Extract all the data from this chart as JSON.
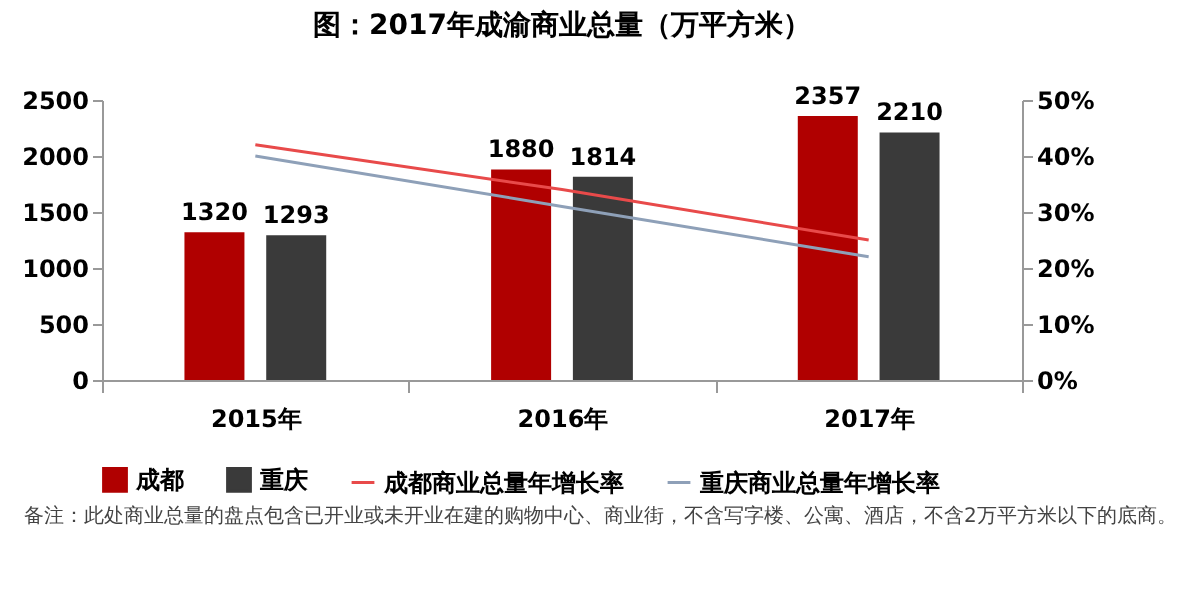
{
  "chart_data": {
    "type": "bar",
    "title": "图：2017年成渝商业总量（万平方米）",
    "categories": [
      "2015年",
      "2016年",
      "2017年"
    ],
    "series": [
      {
        "name": "成都",
        "color": "#b00000",
        "values": [
          1320,
          1880,
          2357
        ],
        "value_labels": [
          "1320",
          "1880",
          "2357"
        ]
      },
      {
        "name": "重庆",
        "color": "#3a3a3a",
        "values": [
          1293,
          1814,
          2210
        ],
        "value_labels": [
          "1293",
          "1814",
          "2210"
        ]
      },
      {
        "name": "成都商业总量年增长率",
        "type": "line",
        "axis": "y2",
        "color": "#e84a4a",
        "values": [
          42,
          34,
          25
        ]
      },
      {
        "name": "重庆商业总量年增长率",
        "type": "line",
        "axis": "y2",
        "color": "#8ea0b8",
        "values": [
          40,
          31,
          22
        ]
      }
    ],
    "ylim": [
      0,
      2500
    ],
    "yticks": [
      0,
      500,
      1000,
      1500,
      2000,
      2500
    ],
    "y2lim": [
      0,
      50
    ],
    "y2ticks": [
      {
        "value": 0,
        "label": "0%"
      },
      {
        "value": 10,
        "label": "10%"
      },
      {
        "value": 20,
        "label": "20%"
      },
      {
        "value": 30,
        "label": "30%"
      },
      {
        "value": 40,
        "label": "40%"
      },
      {
        "value": 50,
        "label": "50%"
      }
    ],
    "legend": "bottom",
    "grid": false,
    "annotations": [
      "备注：此处商业总量的盘点包含已开业或未开业在建的购物中心、商业街，不含写字楼、公寓、酒店，不含2万平方米以下的底商。"
    ]
  }
}
